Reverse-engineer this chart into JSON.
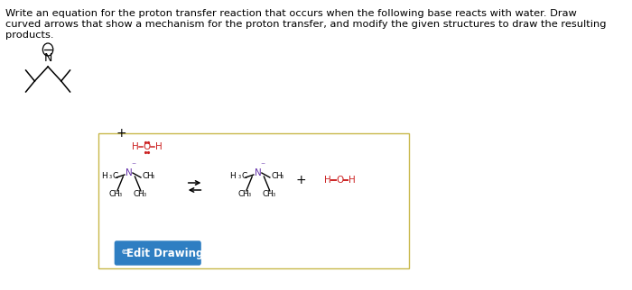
{
  "text_lines": [
    "Write an equation for the proton transfer reaction that occurs when the following base reacts with water. Draw",
    "curved arrows that show a mechanism for the proton transfer, and modify the given structures to draw the resulting",
    "products."
  ],
  "bg_color": "#ffffff",
  "box_bg": "#ffffff",
  "box_border": "#c8b84a",
  "text_color": "#000000",
  "red_color": "#cc2222",
  "purple_color": "#6633aa",
  "blue_btn_color": "#2e7ec2",
  "blue_btn_text": "Edit Drawing",
  "bond_color": "#000000"
}
